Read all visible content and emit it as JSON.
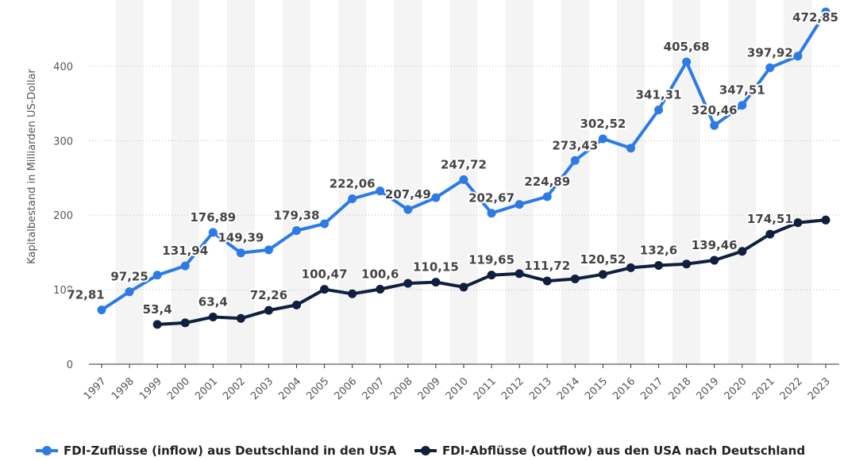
{
  "chart_data": {
    "type": "line",
    "title": "",
    "xlabel": "",
    "ylabel": "Kapitalbestand in Milliarden US-Dollar",
    "ylim": [
      0,
      472.85
    ],
    "yticks": [
      0,
      100,
      200,
      300,
      400
    ],
    "categories": [
      "1997",
      "1998",
      "1999",
      "2000",
      "2001",
      "2002",
      "2003",
      "2004",
      "2005",
      "2006",
      "2007",
      "2008",
      "2009",
      "2010",
      "2011",
      "2012",
      "2013",
      "2014",
      "2015",
      "2016",
      "2017",
      "2018",
      "2019",
      "2020",
      "2021",
      "2022",
      "2023"
    ],
    "series": [
      {
        "name": "FDI-Zuflüsse (inflow) aus Deutschland in den USA",
        "color": "#2c7be5",
        "values": [
          72.81,
          97.25,
          119.5,
          131.94,
          176.89,
          149.39,
          153.5,
          179.38,
          188.5,
          222.06,
          232.5,
          207.49,
          223.5,
          247.72,
          202.67,
          214.5,
          224.89,
          273.43,
          302.52,
          290.0,
          341.31,
          405.68,
          320.46,
          347.51,
          397.92,
          413.5,
          472.85
        ],
        "labels": [
          "72,81",
          "97,25",
          "",
          "131,94",
          "176,89",
          "149,39",
          "",
          "179,38",
          "",
          "222,06",
          "",
          "207,49",
          "",
          "247,72",
          "202,67",
          "",
          "224,89",
          "273,43",
          "302,52",
          "",
          "341,31",
          "405,68",
          "320,46",
          "347,51",
          "397,92",
          "",
          "472,85"
        ]
      },
      {
        "name": "FDI-Abflüsse (outflow) aus den USA nach Deutschland",
        "color": "#0f1f3d",
        "values": [
          null,
          null,
          53.4,
          55.5,
          63.4,
          61.5,
          72.26,
          79.5,
          100.47,
          94.5,
          100.6,
          108.5,
          110.15,
          103.5,
          119.65,
          121.5,
          111.72,
          114.5,
          120.52,
          129.5,
          132.6,
          134.5,
          139.46,
          151.5,
          174.51,
          190.0,
          193.5
        ],
        "labels": [
          "",
          "",
          "53,4",
          "",
          "63,4",
          "",
          "72,26",
          "",
          "100,47",
          "",
          "100,6",
          "",
          "110,15",
          "",
          "119,65",
          "",
          "111,72",
          "",
          "120,52",
          "",
          "132,6",
          "",
          "139,46",
          "",
          "174,51",
          "",
          ""
        ]
      }
    ],
    "grid": true,
    "legend_position": "bottom"
  }
}
